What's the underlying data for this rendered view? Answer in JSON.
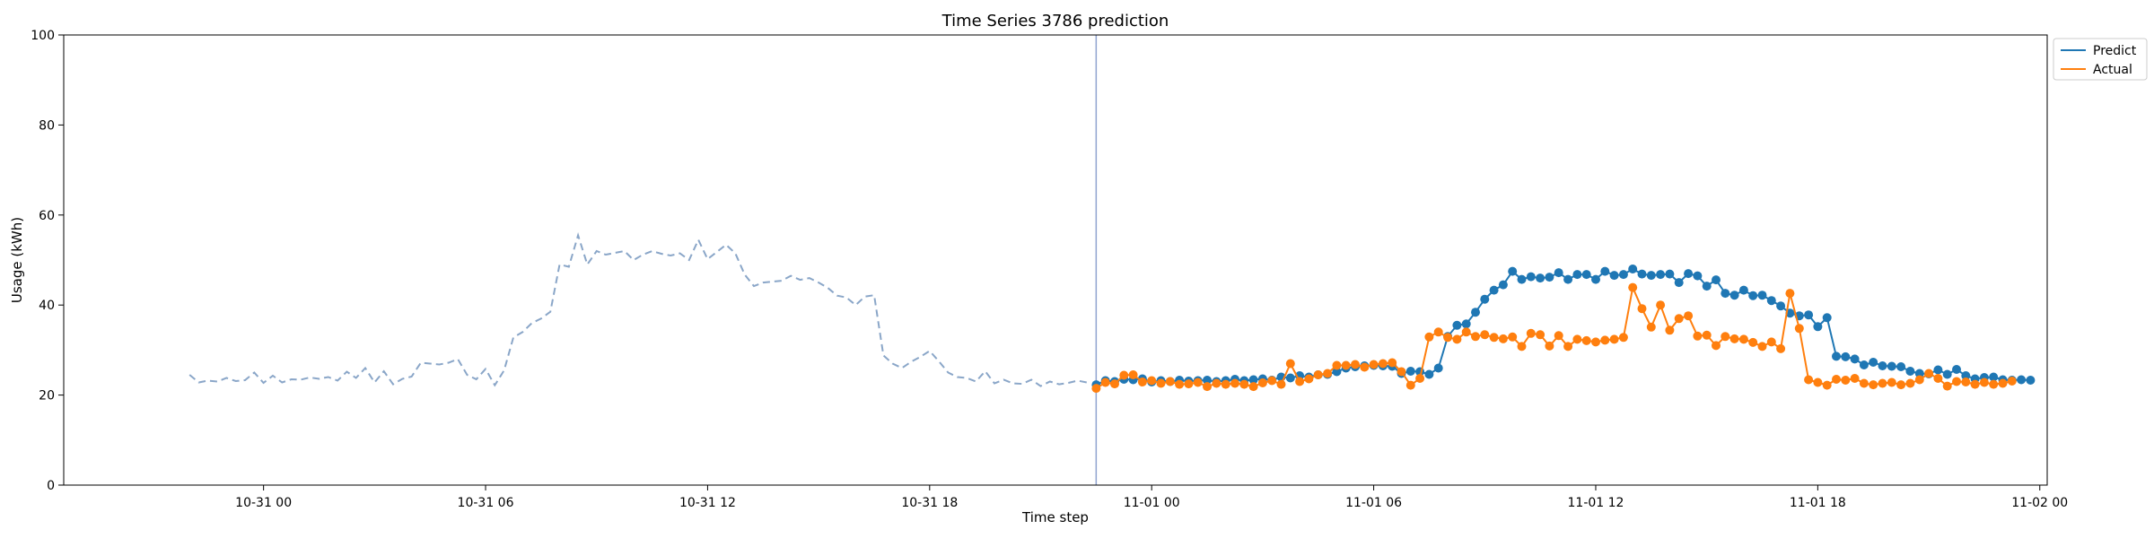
{
  "chart_data": {
    "type": "line",
    "title": "Time Series 3786 prediction",
    "xlabel": "Time step",
    "ylabel": "Usage (kWh)",
    "x_unit": "hours since 10-31 00:00",
    "xlim": [
      -5.4,
      48.2
    ],
    "ylim": [
      0,
      100
    ],
    "x_ticks": [
      {
        "value": 0,
        "label": "10-31 00"
      },
      {
        "value": 6,
        "label": "10-31 06"
      },
      {
        "value": 12,
        "label": "10-31 12"
      },
      {
        "value": 18,
        "label": "10-31 18"
      },
      {
        "value": 24,
        "label": "11-01 00"
      },
      {
        "value": 30,
        "label": "11-01 06"
      },
      {
        "value": 36,
        "label": "11-01 12"
      },
      {
        "value": 42,
        "label": "11-01 18"
      },
      {
        "value": 48,
        "label": "11-02 00"
      }
    ],
    "y_ticks": [
      {
        "value": 0,
        "label": "0"
      },
      {
        "value": 20,
        "label": "20"
      },
      {
        "value": 40,
        "label": "40"
      },
      {
        "value": 60,
        "label": "60"
      },
      {
        "value": 80,
        "label": "80"
      },
      {
        "value": 100,
        "label": "100"
      }
    ],
    "vline_x": 22.5,
    "legend": {
      "position": "top-right",
      "entries": [
        "Predict",
        "Actual"
      ]
    },
    "colors": {
      "predict": "#1f77b4",
      "actual": "#ff7f0e",
      "history": "#8aa6c8",
      "vline": "#8fa3cf"
    },
    "history": {
      "name": "history",
      "start": -2.0,
      "step": 0.25,
      "values": [
        24.5,
        22.8,
        23.2,
        23.0,
        23.8,
        23.1,
        23.3,
        25.0,
        22.7,
        24.3,
        22.8,
        23.5,
        23.4,
        23.9,
        23.6,
        24.0,
        23.2,
        25.2,
        23.8,
        26.0,
        22.8,
        25.3,
        22.4,
        23.6,
        24.1,
        27.2,
        27.0,
        26.8,
        27.2,
        28.0,
        24.5,
        23.5,
        25.8,
        22.2,
        25.5,
        32.8,
        34.0,
        36.0,
        37.0,
        38.5,
        49.0,
        48.5,
        55.5,
        49.0,
        52.0,
        51.2,
        51.6,
        52.0,
        50.0,
        51.2,
        52.0,
        51.4,
        51.0,
        51.5,
        50.0,
        54.5,
        50.2,
        51.8,
        53.4,
        51.5,
        46.8,
        44.2,
        45.0,
        45.2,
        45.4,
        46.5,
        45.6,
        46.0,
        45.0,
        43.8,
        42.1,
        41.7,
        40.0,
        41.9,
        42.2,
        28.8,
        27.0,
        26.0,
        27.4,
        28.5,
        29.8,
        27.5,
        25.0,
        24.0,
        23.8,
        23.0,
        25.3,
        22.6,
        23.4,
        22.6,
        22.5,
        23.4,
        22.0,
        23.0,
        22.4,
        22.7,
        23.2,
        22.8
      ]
    },
    "series": [
      {
        "name": "Predict",
        "start": 22.5,
        "step": 0.25,
        "values": [
          22.3,
          23.2,
          23.0,
          23.5,
          23.4,
          23.6,
          22.9,
          23.2,
          23.0,
          23.3,
          23.1,
          23.2,
          23.3,
          23.0,
          23.2,
          23.5,
          23.2,
          23.4,
          23.6,
          23.3,
          24.0,
          23.8,
          24.3,
          24.0,
          24.5,
          24.6,
          25.2,
          26.0,
          26.3,
          26.5,
          26.6,
          26.5,
          26.4,
          24.8,
          25.3,
          25.2,
          24.6,
          26.0,
          33.0,
          35.5,
          35.8,
          38.4,
          41.3,
          43.3,
          44.5,
          47.5,
          45.7,
          46.3,
          46.0,
          46.2,
          47.2,
          45.7,
          46.8,
          46.8,
          45.7,
          47.5,
          46.6,
          46.8,
          48.0,
          46.9,
          46.6,
          46.8,
          46.9,
          45.0,
          47.0,
          46.5,
          44.2,
          45.6,
          42.6,
          42.2,
          43.3,
          42.1,
          42.2,
          41.0,
          39.8,
          38.2,
          37.6,
          37.8,
          35.2,
          37.2,
          28.6,
          28.5,
          28.0,
          26.7,
          27.3,
          26.5,
          26.4,
          26.3,
          25.3,
          24.8,
          24.7,
          25.6,
          24.6,
          25.7,
          24.3,
          23.6,
          23.9,
          24.0,
          23.4,
          23.3,
          23.4,
          23.3
        ]
      },
      {
        "name": "Actual",
        "start": 22.5,
        "step": 0.25,
        "values": [
          21.5,
          22.8,
          22.5,
          24.4,
          24.5,
          22.9,
          23.2,
          22.6,
          23.0,
          22.4,
          22.5,
          22.8,
          21.9,
          22.6,
          22.4,
          22.6,
          22.4,
          21.9,
          22.7,
          23.2,
          22.4,
          27.0,
          23.0,
          23.6,
          24.5,
          24.8,
          26.6,
          26.6,
          26.8,
          26.2,
          26.8,
          27.0,
          27.2,
          25.2,
          22.2,
          23.7,
          32.9,
          34.0,
          32.8,
          32.4,
          34.0,
          33.0,
          33.4,
          32.8,
          32.5,
          32.9,
          30.8,
          33.7,
          33.4,
          30.9,
          33.2,
          30.8,
          32.4,
          32.1,
          31.8,
          32.2,
          32.4,
          32.8,
          43.9,
          39.2,
          35.1,
          40.0,
          34.4,
          37.0,
          37.6,
          33.1,
          33.3,
          31.0,
          33.0,
          32.5,
          32.4,
          31.7,
          30.8,
          31.8,
          30.3,
          42.6,
          34.8,
          23.4,
          22.8,
          22.2,
          23.5,
          23.3,
          23.7,
          22.6,
          22.3,
          22.6,
          22.8,
          22.3,
          22.6,
          23.4,
          24.8,
          23.7,
          22.0,
          23.0,
          22.9,
          22.4,
          22.8,
          22.4,
          22.6,
          23.1
        ]
      }
    ]
  }
}
